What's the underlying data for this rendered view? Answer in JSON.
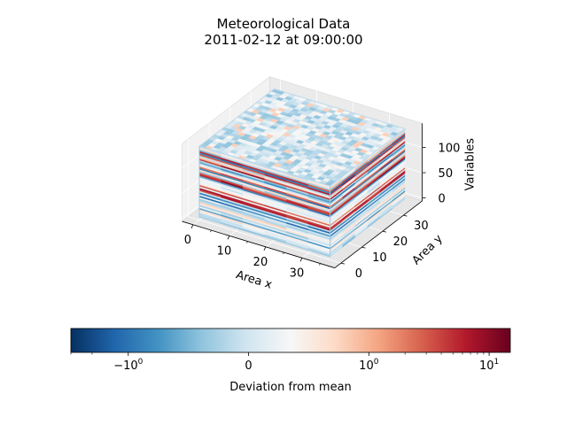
{
  "chart_data": {
    "type": "heatmap",
    "plot_kind": "3d-voxel-cube",
    "title": "Meteorological Data",
    "subtitle": "2011-02-12 at 09:00:00",
    "axes": {
      "x": {
        "label": "Area x",
        "ticks": [
          "0",
          "10",
          "20",
          "30"
        ],
        "range": [
          0,
          36
        ]
      },
      "y": {
        "label": "Area y",
        "ticks": [
          "0",
          "10",
          "20",
          "30"
        ],
        "range": [
          0,
          36
        ]
      },
      "z": {
        "label": "Variables",
        "ticks": [
          "0",
          "50",
          "100"
        ],
        "range": [
          0,
          140
        ]
      }
    },
    "colorbar": {
      "label": "Deviation from mean",
      "colormap": "RdBu_r",
      "scale": "symlog",
      "orientation": "horizontal",
      "ticks": [
        {
          "value": -1,
          "base": "−10",
          "exp": "0"
        },
        {
          "value": 0,
          "text": "0"
        },
        {
          "value": 1,
          "base": "10",
          "exp": "0"
        },
        {
          "value": 10,
          "base": "10",
          "exp": "1"
        }
      ],
      "range": [
        -3,
        15
      ],
      "colors": [
        "#053061",
        "#2166ac",
        "#4393c3",
        "#92c5de",
        "#d1e5f0",
        "#f7f7f7",
        "#fddbc7",
        "#f4a582",
        "#d6604d",
        "#b2182b",
        "#67001f"
      ]
    },
    "grid": true
  }
}
